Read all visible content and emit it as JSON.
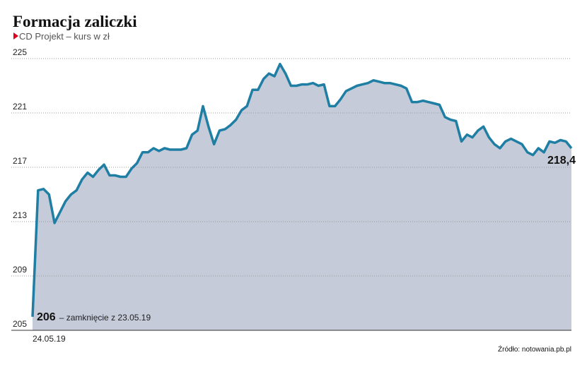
{
  "chart_data": {
    "type": "line",
    "title": "Formacja zaliczki",
    "subtitle": "CD Projekt – kurs w zł",
    "source": "Źródło: notowania.pb.pl",
    "annotation": "– zamknięcie z 23.05.19",
    "color": "#1f7ea3",
    "fill": "#c6cbda",
    "grid": true,
    "ylim": [
      205,
      225
    ],
    "yticks": [
      205,
      209,
      213,
      217,
      221,
      225
    ],
    "categories": [
      "24.05.19",
      null,
      null,
      null,
      null,
      null,
      null,
      null,
      null,
      null,
      null,
      null,
      null,
      null,
      null,
      null,
      null,
      null,
      null,
      null,
      null,
      null,
      null,
      null,
      null,
      null,
      null,
      null,
      null,
      null,
      null,
      null,
      null,
      null,
      null,
      null,
      null,
      null,
      null,
      null,
      null,
      null,
      null,
      null,
      null,
      null,
      null,
      null,
      null,
      null,
      null,
      null,
      null,
      null,
      null,
      null,
      null,
      null,
      null,
      null,
      null,
      null,
      null,
      null,
      null,
      null,
      null,
      null,
      null,
      null,
      null,
      null,
      null,
      null,
      null,
      null,
      null,
      null,
      null,
      null,
      null,
      null,
      null,
      null,
      null,
      null,
      null,
      null,
      null,
      null,
      null,
      null,
      null,
      null,
      null,
      null,
      null,
      null,
      null
    ],
    "values": [
      206,
      215.3,
      215.4,
      215.0,
      212.9,
      213.7,
      214.5,
      215.0,
      215.3,
      216.1,
      216.6,
      216.3,
      216.8,
      217.2,
      216.4,
      216.4,
      216.3,
      216.3,
      216.9,
      217.3,
      218.1,
      218.1,
      218.4,
      218.2,
      218.4,
      218.3,
      218.3,
      218.3,
      218.4,
      219.4,
      219.7,
      221.5,
      220.0,
      218.7,
      219.7,
      219.8,
      220.1,
      220.5,
      221.2,
      221.5,
      222.7,
      222.7,
      223.5,
      223.9,
      223.7,
      224.6,
      223.9,
      223.0,
      223.0,
      223.1,
      223.1,
      223.2,
      223.0,
      223.1,
      221.5,
      221.5,
      222.0,
      222.6,
      222.8,
      223.0,
      223.1,
      223.2,
      223.4,
      223.3,
      223.2,
      223.2,
      223.1,
      223.0,
      222.8,
      221.8,
      221.8,
      221.9,
      221.8,
      221.7,
      221.6,
      220.7,
      220.5,
      220.4,
      218.9,
      219.4,
      219.2,
      219.7,
      220.0,
      219.2,
      218.7,
      218.4,
      218.9,
      219.1,
      218.9,
      218.7,
      218.1,
      217.9,
      218.4,
      218.1,
      218.9,
      218.8,
      219.0,
      218.9,
      218.4
    ],
    "value_labels": [
      "206",
      null,
      null,
      null,
      null,
      null,
      null,
      null,
      null,
      null,
      null,
      null,
      null,
      null,
      null,
      null,
      null,
      null,
      null,
      null,
      null,
      null,
      null,
      null,
      null,
      null,
      null,
      null,
      null,
      null,
      null,
      null,
      null,
      null,
      null,
      null,
      null,
      null,
      null,
      null,
      null,
      null,
      null,
      null,
      null,
      null,
      null,
      null,
      null,
      null,
      null,
      null,
      null,
      null,
      null,
      null,
      null,
      null,
      null,
      null,
      null,
      null,
      null,
      null,
      null,
      null,
      null,
      null,
      null,
      null,
      null,
      null,
      null,
      null,
      null,
      null,
      null,
      null,
      null,
      null,
      null,
      null,
      null,
      null,
      null,
      null,
      null,
      null,
      null,
      null,
      null,
      null,
      null,
      null,
      null,
      null,
      null,
      null,
      "218,4"
    ]
  }
}
